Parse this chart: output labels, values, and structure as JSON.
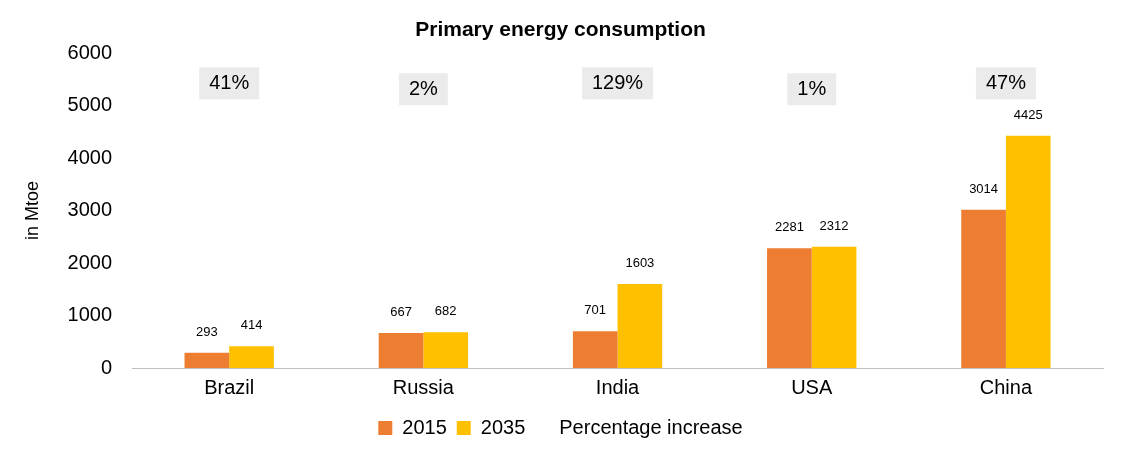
{
  "chart_data": {
    "type": "bar",
    "title": "Primary energy consumption",
    "ylabel": "in Mtoe",
    "categories": [
      "Brazil",
      "Russia",
      "India",
      "USA",
      "China"
    ],
    "series": [
      {
        "name": "2015",
        "color": "#ed7d31",
        "values": [
          293,
          667,
          701,
          2281,
          3014
        ]
      },
      {
        "name": "2035",
        "color": "#ffc000",
        "values": [
          414,
          682,
          1603,
          2312,
          4425
        ]
      }
    ],
    "ylim": [
      0,
      6000
    ],
    "yticks": [
      0,
      1000,
      2000,
      3000,
      4000,
      5000,
      6000
    ],
    "grid": false,
    "legend": "bottom",
    "data_labels": true,
    "annotations": [
      "41%",
      "2%",
      "129%",
      "1%",
      "47%",
      "Percentage increase"
    ]
  }
}
